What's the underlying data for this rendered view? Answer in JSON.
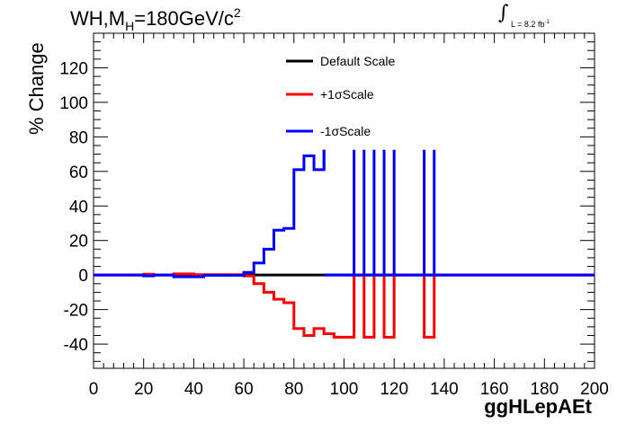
{
  "chart_data": {
    "type": "line",
    "title_prefix": "WH,M",
    "title_sub": "H",
    "title_mid": "=180GeV/c",
    "title_sup": "2",
    "lumi_label": "L = 8.2 fb",
    "lumi_sup": "-1",
    "xlabel": "ggHLepAEt",
    "ylabel": "% Change",
    "xlim": [
      0,
      200
    ],
    "ylim": [
      -54,
      140
    ],
    "x_ticks": [
      0,
      20,
      40,
      60,
      80,
      100,
      120,
      140,
      160,
      180,
      200
    ],
    "y_ticks": [
      -40,
      -20,
      0,
      20,
      40,
      60,
      80,
      100,
      120
    ],
    "grid": false,
    "legend_placement": "top-center",
    "series": [
      {
        "name": "Default Scale",
        "color": "#000000",
        "points": [
          [
            0,
            0
          ],
          [
            200,
            0
          ]
        ]
      },
      {
        "name": "+1σScale",
        "color": "#ff0000",
        "points": [
          [
            0,
            0
          ],
          [
            20,
            0
          ],
          [
            20,
            0.5
          ],
          [
            24,
            0.5
          ],
          [
            24,
            0
          ],
          [
            32,
            0
          ],
          [
            32,
            0.7
          ],
          [
            40,
            0.7
          ],
          [
            40,
            0.2
          ],
          [
            60,
            0.2
          ],
          [
            60,
            -0.5
          ],
          [
            64,
            -0.5
          ],
          [
            64,
            -5
          ],
          [
            68,
            -5
          ],
          [
            68,
            -10
          ],
          [
            72,
            -10
          ],
          [
            72,
            -14
          ],
          [
            76,
            -14
          ],
          [
            76,
            -16
          ],
          [
            80,
            -16
          ],
          [
            80,
            -31
          ],
          [
            84,
            -31
          ],
          [
            84,
            -35
          ],
          [
            88,
            -35
          ],
          [
            88,
            -31
          ],
          [
            92,
            -31
          ],
          [
            92,
            -34
          ],
          [
            96,
            -34
          ],
          [
            96,
            -36
          ],
          [
            104,
            -36
          ],
          [
            104,
            0
          ],
          [
            108,
            0
          ],
          [
            108,
            -36
          ],
          [
            112,
            -36
          ],
          [
            112,
            0
          ],
          [
            116,
            0
          ],
          [
            116,
            -36
          ],
          [
            120,
            -36
          ],
          [
            120,
            0
          ],
          [
            132,
            0
          ],
          [
            132,
            -36
          ],
          [
            136,
            -36
          ],
          [
            136,
            0
          ],
          [
            200,
            0
          ]
        ]
      },
      {
        "name": "-1σScale",
        "color": "#0000ff",
        "points": [
          [
            0,
            0
          ],
          [
            20,
            0
          ],
          [
            20,
            -0.5
          ],
          [
            24,
            -0.5
          ],
          [
            24,
            0
          ],
          [
            32,
            0
          ],
          [
            32,
            -1
          ],
          [
            44,
            -1
          ],
          [
            44,
            -0.2
          ],
          [
            60,
            -0.2
          ],
          [
            60,
            1.5
          ],
          [
            64,
            1.5
          ],
          [
            64,
            7
          ],
          [
            68,
            7
          ],
          [
            68,
            15
          ],
          [
            72,
            15
          ],
          [
            72,
            26
          ],
          [
            76,
            26
          ],
          [
            76,
            27
          ],
          [
            80,
            27
          ],
          [
            80,
            61
          ],
          [
            84,
            61
          ],
          [
            84,
            69
          ],
          [
            88,
            69
          ],
          [
            88,
            61
          ],
          [
            92,
            61
          ],
          [
            92,
            72.5
          ],
          [
            92,
            72.5
          ]
        ],
        "spikes": [
          [
            104,
            108
          ],
          [
            112,
            116
          ],
          [
            120
          ],
          [
            132,
            136
          ]
        ]
      }
    ]
  }
}
